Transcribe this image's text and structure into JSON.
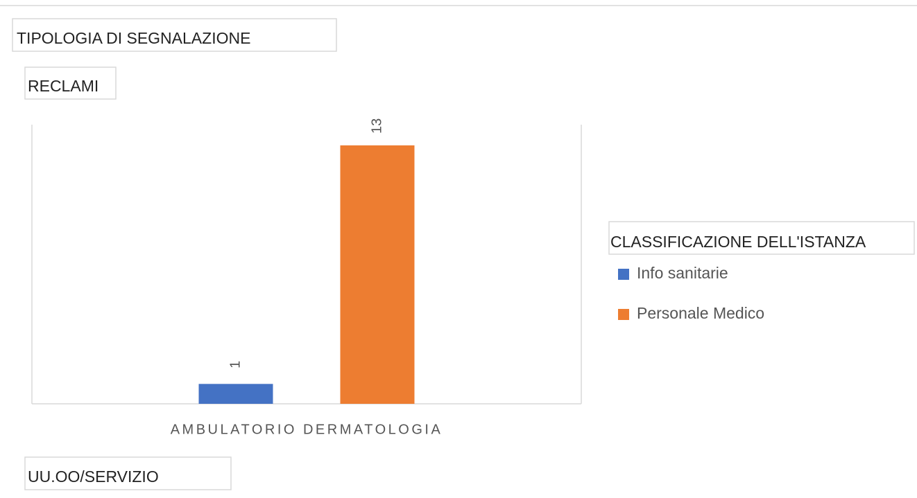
{
  "chart_data": {
    "type": "bar",
    "filter_field": "TIPOLOGIA DI SEGNALAZIONE",
    "filter_value": "RECLAMI",
    "x_field": "UU.OO/SERVIZIO",
    "legend_title": "CLASSIFICAZIONE DELL'ISTANZA",
    "categories": [
      "AMBULATORIO DERMATOLOGIA"
    ],
    "series": [
      {
        "name": "Info sanitarie",
        "color": "#4472c4",
        "values": [
          1
        ]
      },
      {
        "name": "Personale Medico",
        "color": "#ed7d31",
        "values": [
          13
        ]
      }
    ],
    "legend": "right"
  }
}
